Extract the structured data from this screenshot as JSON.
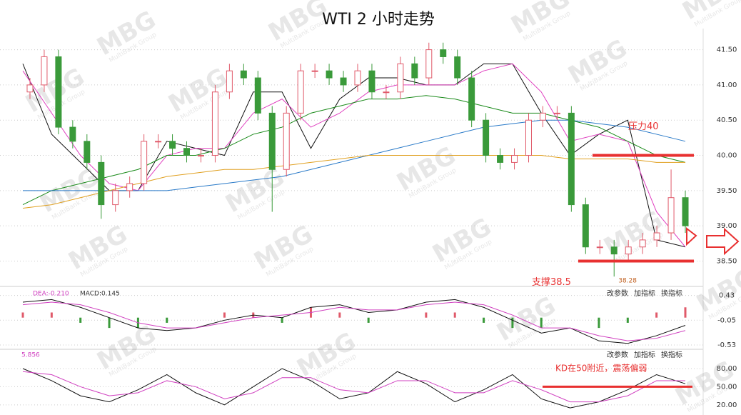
{
  "chart_data": [
    {
      "type": "candlestick",
      "title": "WTI 2 小时走势",
      "open": [
        40.9,
        41.0,
        41.4,
        40.4,
        40.2,
        39.9,
        39.3,
        39.5,
        39.6,
        40.2,
        40.2,
        40.1,
        40.0,
        40.0,
        40.9,
        41.2,
        41.1,
        40.6,
        39.8,
        40.6,
        41.2,
        41.2,
        41.1,
        41.0,
        41.2,
        40.9,
        40.9,
        41.3,
        41.1,
        41.5,
        41.4,
        41.1,
        40.5,
        40.0,
        39.9,
        40.0,
        40.5,
        40.6,
        40.6,
        39.3,
        38.7,
        38.7,
        38.6,
        38.7,
        38.8,
        38.9,
        39.4
      ],
      "high": [
        41.1,
        41.5,
        41.5,
        40.5,
        40.3,
        40.0,
        39.6,
        39.7,
        40.3,
        40.3,
        40.3,
        40.2,
        40.1,
        41.0,
        41.3,
        41.3,
        41.2,
        40.7,
        40.7,
        41.3,
        41.3,
        41.3,
        41.2,
        41.3,
        41.3,
        41.0,
        41.4,
        41.4,
        41.6,
        41.6,
        41.5,
        41.2,
        40.6,
        40.1,
        40.1,
        40.6,
        40.7,
        40.7,
        40.7,
        39.4,
        38.8,
        38.8,
        38.8,
        38.9,
        39.0,
        39.8,
        39.5
      ],
      "low": [
        40.8,
        40.9,
        40.3,
        40.1,
        39.8,
        39.1,
        39.2,
        39.4,
        39.5,
        40.1,
        40.0,
        39.9,
        39.9,
        39.9,
        40.8,
        41.0,
        40.5,
        39.2,
        39.7,
        40.5,
        41.1,
        41.0,
        40.9,
        40.9,
        40.8,
        40.8,
        40.8,
        41.0,
        41.0,
        41.3,
        41.0,
        40.4,
        39.9,
        39.8,
        39.8,
        39.9,
        40.4,
        40.5,
        39.2,
        38.6,
        38.6,
        38.28,
        38.5,
        38.6,
        38.7,
        38.8,
        38.9
      ],
      "close": [
        41.0,
        41.4,
        40.4,
        40.2,
        39.9,
        39.3,
        39.5,
        39.6,
        40.2,
        40.2,
        40.1,
        40.0,
        40.0,
        40.9,
        41.2,
        41.1,
        40.6,
        39.8,
        40.6,
        41.2,
        41.2,
        41.1,
        41.0,
        41.2,
        40.9,
        40.9,
        41.3,
        41.1,
        41.5,
        41.4,
        41.1,
        40.5,
        40.0,
        39.9,
        40.0,
        40.5,
        40.6,
        40.6,
        39.3,
        38.7,
        38.7,
        38.6,
        38.7,
        38.8,
        38.9,
        39.4,
        39.0
      ],
      "up_color": "#e05a6a",
      "down_color": "#3a9a3a",
      "lines": [
        {
          "color": "#111111",
          "values": [
            41.3,
            40.3,
            39.9,
            39.5,
            39.5,
            40.2,
            40.1,
            40.0,
            40.9,
            40.9,
            40.1,
            40.8,
            41.1,
            41.1,
            41.0,
            41.0,
            41.3,
            41.3,
            40.6,
            40.0,
            40.3,
            40.5,
            38.8,
            38.7
          ]
        },
        {
          "color": "#e040c0",
          "values": [
            41.2,
            40.6,
            40.0,
            39.6,
            39.5,
            40.0,
            40.1,
            40.1,
            40.6,
            40.8,
            40.4,
            40.6,
            40.9,
            41.0,
            41.0,
            41.0,
            41.2,
            41.3,
            40.9,
            40.2,
            40.3,
            40.2,
            39.2,
            38.7
          ]
        },
        {
          "color": "#1a8a1a",
          "values": [
            39.3,
            39.5,
            39.6,
            39.7,
            39.8,
            40.0,
            40.0,
            40.1,
            40.3,
            40.4,
            40.6,
            40.7,
            40.8,
            40.8,
            40.85,
            40.8,
            40.7,
            40.6,
            40.6,
            40.5,
            40.4,
            40.2,
            40.0,
            39.9
          ]
        },
        {
          "color": "#2a7ac8",
          "values": [
            39.5,
            39.5,
            39.5,
            39.5,
            39.5,
            39.5,
            39.55,
            39.6,
            39.65,
            39.7,
            39.8,
            39.9,
            40.0,
            40.1,
            40.2,
            40.3,
            40.4,
            40.45,
            40.5,
            40.5,
            40.45,
            40.4,
            40.3,
            40.2
          ]
        },
        {
          "color": "#e0a020",
          "values": [
            39.25,
            39.3,
            39.4,
            39.5,
            39.6,
            39.7,
            39.75,
            39.8,
            39.8,
            39.85,
            39.9,
            39.95,
            40.0,
            40.0,
            40.0,
            40.0,
            40.0,
            40.0,
            40.0,
            39.95,
            39.95,
            39.95,
            39.9,
            39.9
          ]
        }
      ],
      "hlines": [
        {
          "value": 40.0,
          "label": "压力40"
        },
        {
          "value": 38.5,
          "label": "支撑38.5"
        }
      ],
      "low_label": 38.28,
      "hline_color": "#e83030",
      "ylim": [
        38.15,
        41.8
      ],
      "yticks": [
        {
          "value": 38.5,
          "label": "38.50"
        },
        {
          "value": 39.0,
          "label": "39.00"
        },
        {
          "value": 39.5,
          "label": "39.50"
        },
        {
          "value": 40.0,
          "label": "40.00"
        },
        {
          "value": 40.5,
          "label": "40.50"
        },
        {
          "value": 41.0,
          "label": "41.00"
        },
        {
          "value": 41.5,
          "label": "41.50"
        }
      ],
      "watermark": "MBG",
      "watermark_sub": "MultiBank Group"
    },
    {
      "type": "macd",
      "header": [
        "DEA:-0.210",
        "MACD:0.145"
      ],
      "buttons": [
        "改参数",
        "加指标",
        "换指标"
      ],
      "series": [
        {
          "name": "DIF",
          "color": "#111111",
          "values": [
            0.3,
            0.35,
            0.2,
            0.0,
            -0.2,
            -0.25,
            -0.2,
            -0.05,
            0.05,
            0.0,
            0.2,
            0.25,
            0.1,
            0.15,
            0.3,
            0.35,
            0.2,
            -0.05,
            -0.3,
            -0.2,
            -0.45,
            -0.5,
            -0.35,
            -0.15
          ]
        },
        {
          "name": "DEA",
          "color": "#d040c0",
          "values": [
            0.25,
            0.3,
            0.25,
            0.1,
            -0.1,
            -0.2,
            -0.2,
            -0.1,
            0.0,
            0.05,
            0.1,
            0.2,
            0.15,
            0.15,
            0.25,
            0.3,
            0.25,
            0.05,
            -0.2,
            -0.2,
            -0.35,
            -0.45,
            -0.4,
            -0.25
          ]
        }
      ],
      "histogram": [
        0.1,
        0.1,
        -0.1,
        -0.2,
        -0.2,
        -0.1,
        0,
        0.1,
        0.1,
        -0.1,
        0.2,
        0.1,
        -0.1,
        0,
        0.1,
        0.1,
        -0.1,
        -0.2,
        -0.2,
        0,
        -0.2,
        -0.1,
        0.1,
        0.2
      ],
      "ylim": [
        -0.6,
        0.55
      ],
      "yticks": [
        0.43,
        -0.05,
        -0.53
      ]
    },
    {
      "type": "line",
      "header": [
        "5.856"
      ],
      "buttons": [
        "改参数",
        "加指标",
        "换指标"
      ],
      "annotation": "KD在50附近，震荡偏弱",
      "hline": 50,
      "series": [
        {
          "name": "K",
          "color": "#111111",
          "values": [
            80,
            60,
            35,
            25,
            45,
            70,
            40,
            20,
            50,
            80,
            60,
            30,
            40,
            75,
            55,
            25,
            45,
            70,
            30,
            15,
            25,
            45,
            70,
            55
          ]
        },
        {
          "name": "D",
          "color": "#d040c0",
          "values": [
            75,
            70,
            50,
            35,
            40,
            60,
            50,
            30,
            40,
            65,
            65,
            45,
            40,
            60,
            60,
            40,
            40,
            60,
            45,
            25,
            25,
            35,
            60,
            60
          ]
        }
      ],
      "ylim": [
        8,
        93
      ],
      "yticks": [
        {
          "value": 80,
          "label": "80.00"
        },
        {
          "value": 50,
          "label": "50.00"
        },
        {
          "value": 20,
          "label": "20.00"
        }
      ]
    }
  ]
}
